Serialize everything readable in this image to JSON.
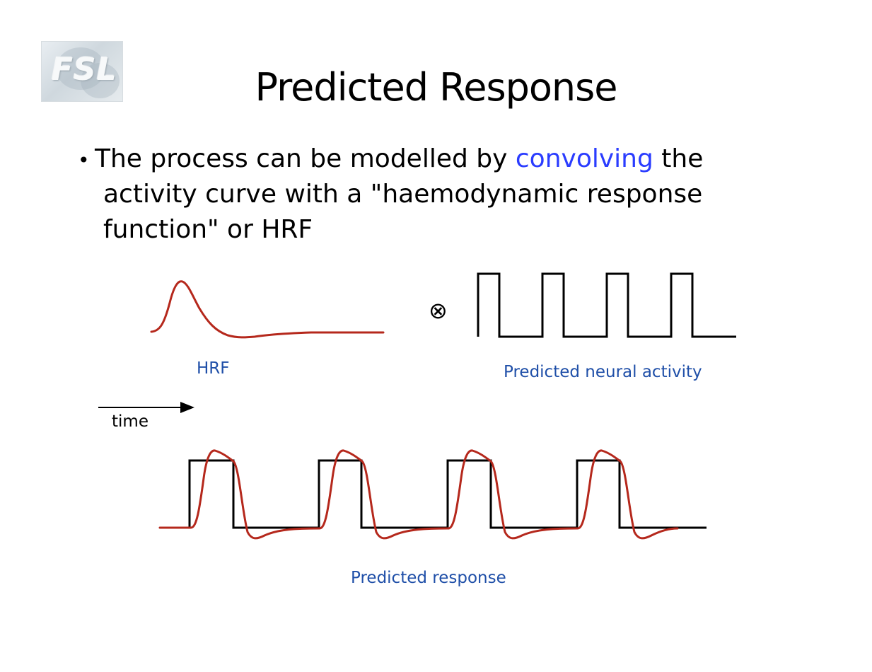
{
  "logo": {
    "text": "FSL"
  },
  "slide": {
    "title": "Predicted Response",
    "bullet": {
      "marker": "•",
      "line1_before": "The process can be modelled by ",
      "line1_highlight": "convolving",
      "line1_after": " the",
      "line2": "activity curve with a \"haemodynamic response",
      "line3": "function\" or HRF"
    }
  },
  "diagram": {
    "convolution_symbol": "⊗",
    "hrf_label": "HRF",
    "neural_label": "Predicted neural activity",
    "time_label": "time",
    "response_label": "Predicted response",
    "colors": {
      "hrf_curve": "#b5281c",
      "boxcar": "#000000",
      "label_blue": "#1f4fa8",
      "highlight": "#2a3cff"
    }
  }
}
